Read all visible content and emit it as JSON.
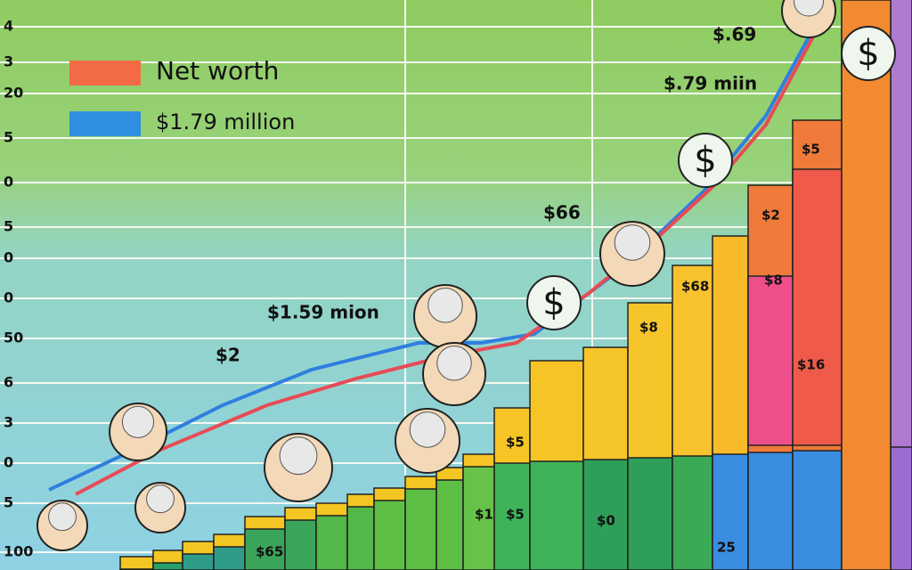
{
  "legend": [
    {
      "text": "Net worth"
    },
    {
      "text": "$1.79 million"
    }
  ],
  "axis_labels": [
    "4",
    "3",
    "20",
    "5",
    "0",
    "5",
    "0",
    "0",
    "50",
    "6",
    "3",
    "0",
    "5",
    "100"
  ],
  "annotations": [
    "$.69",
    "$.79 miin",
    "$66",
    "$1.59 mion",
    "$2",
    "$5",
    "$2",
    "$68",
    "$8",
    "$8",
    "$16",
    "$5",
    "$1",
    "$5",
    "$0",
    "25",
    "$65"
  ],
  "coin_symbol": "$"
}
